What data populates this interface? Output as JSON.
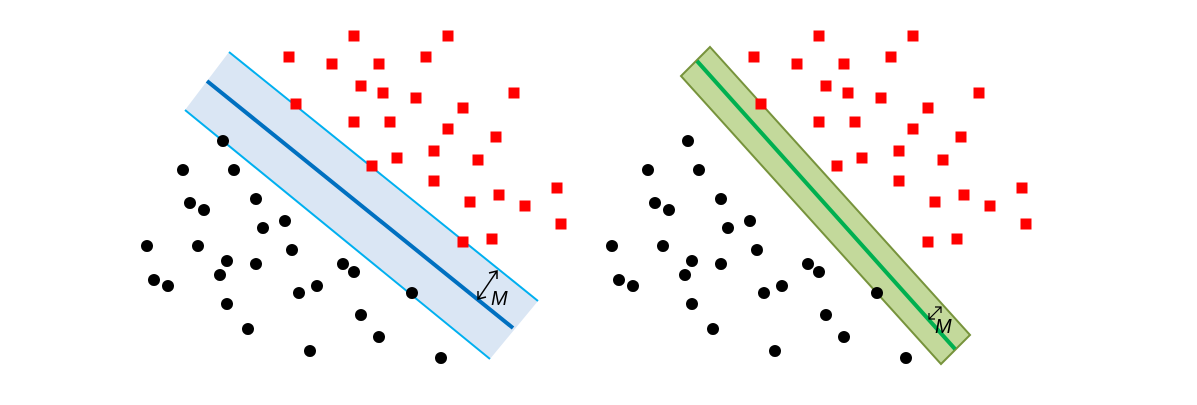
{
  "colors": {
    "background": "#ffffff",
    "class_a": "#000000",
    "class_b": "#ff0000",
    "left_band_fill": "#dae6f4",
    "left_band_edge": "#00b0f0",
    "left_hyperplane": "#0070c0",
    "right_band_fill": "#c3d99b",
    "right_band_edge": "#77933c",
    "right_hyperplane": "#00b050"
  },
  "panels": {
    "left": {
      "margin_label": "M",
      "margin": "wide"
    },
    "right": {
      "margin_label": "M",
      "margin": "narrow"
    }
  },
  "icons": {
    "class_a_marker": "circle",
    "class_b_marker": "square",
    "margin_arrow": "double-arrow"
  }
}
